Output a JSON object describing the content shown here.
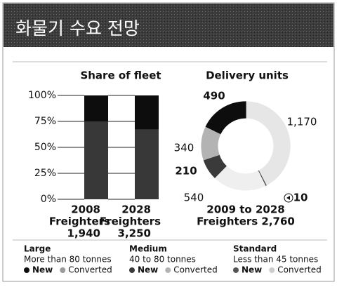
{
  "header": {
    "title": "화물기 수요 전망"
  },
  "chart_data": [
    {
      "type": "bar",
      "stacked": true,
      "title": "Share of fleet",
      "categories": [
        "2008",
        "2028"
      ],
      "category_sublabels": [
        "Freighters",
        "Freighters"
      ],
      "category_totals": [
        "1,940",
        "3,250"
      ],
      "series": [
        {
          "color": "#0d0d0d",
          "values": [
            25,
            33
          ]
        },
        {
          "color": "#383838",
          "values": [
            75,
            67
          ]
        }
      ],
      "ylim": [
        0,
        100
      ],
      "yticks": [
        {
          "value": 0,
          "label": "0%"
        },
        {
          "value": 25,
          "label": "25%"
        },
        {
          "value": 50,
          "label": "50%"
        },
        {
          "value": 75,
          "label": "75%"
        },
        {
          "value": 100,
          "label": "100%"
        }
      ]
    },
    {
      "type": "pie",
      "donut": true,
      "title": "Delivery units",
      "subtitle": "2009 to 2028",
      "total_label": "Freighters 2,760",
      "values": [
        1170,
        10,
        540,
        210,
        340,
        490
      ],
      "value_labels": [
        "1,170",
        "10",
        "540",
        "210",
        "340",
        "490"
      ],
      "colors": [
        "#e6e6e6",
        "#444444",
        "#efefef",
        "#3a3a3a",
        "#b3b3b3",
        "#0d0d0d"
      ],
      "emphasis": [
        false,
        true,
        false,
        true,
        false,
        true
      ]
    }
  ],
  "legend": [
    {
      "name": "Large",
      "description": "More than 80 tonnes",
      "items": [
        "New",
        "Converted"
      ],
      "colors": [
        "#0d0d0d",
        "#9a9a9a"
      ]
    },
    {
      "name": "Medium",
      "description": "40 to 80 tonnes",
      "items": [
        "New",
        "Converted"
      ],
      "colors": [
        "#3a3a3a",
        "#b3b3b3"
      ]
    },
    {
      "name": "Standard",
      "description": "Less than 45 tonnes",
      "items": [
        "New",
        "Converted"
      ],
      "colors": [
        "#555555",
        "#cccccc"
      ]
    }
  ]
}
